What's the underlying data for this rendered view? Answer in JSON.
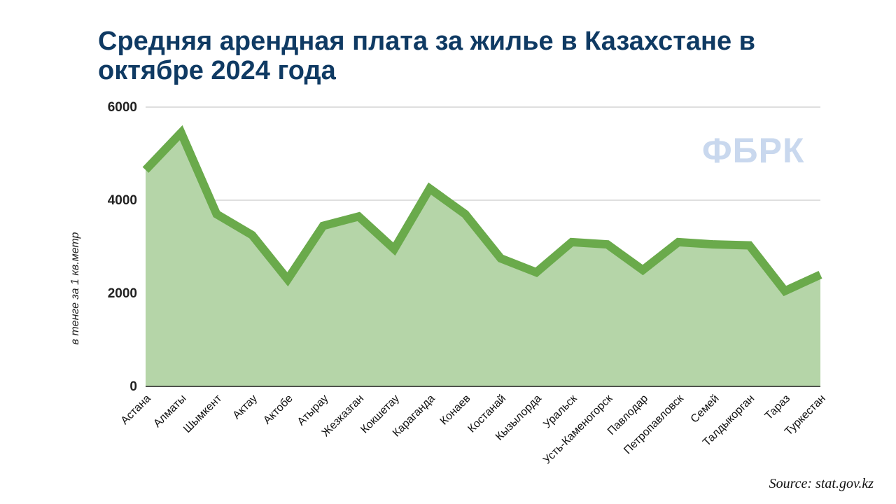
{
  "chart_data": {
    "type": "area",
    "title": "Средняя арендная плата за жилье в Казахстане в октябре 2024 года",
    "ylabel": "в тенге за 1 кв.метр",
    "xlabel": "",
    "ylim": [
      0,
      6000
    ],
    "yticks": [
      0,
      2000,
      4000,
      6000
    ],
    "grid": true,
    "categories": [
      "Астана",
      "Алматы",
      "Шымкент",
      "Актау",
      "Актобе",
      "Атырау",
      "Жезказган",
      "Кокшетау",
      "Караганда",
      "Конаев",
      "Костанай",
      "Кызылорда",
      "Уральск",
      "Усть-Каменогорск",
      "Павлодар",
      "Петропавловск",
      "Семей",
      "Талдыкорган",
      "Тараз",
      "Туркестан"
    ],
    "values": [
      4650,
      5450,
      3700,
      3250,
      2300,
      3450,
      3650,
      2950,
      4250,
      3700,
      2750,
      2450,
      3100,
      3050,
      2500,
      3100,
      3050,
      3030,
      2050,
      2400
    ],
    "colors": {
      "line": "#6aaa4b",
      "fill": "#b5d5a8",
      "grid": "#cccccc",
      "axis": "#333333"
    }
  },
  "header": {
    "title": "Средняя арендная плата за жилье в Казахстане в октябре 2024 года",
    "title_color": "#0f3a63"
  },
  "watermark": {
    "text": "ФБРК",
    "color": "#c9d8ee"
  },
  "footer": {
    "source": "Source: stat.gov.kz"
  }
}
